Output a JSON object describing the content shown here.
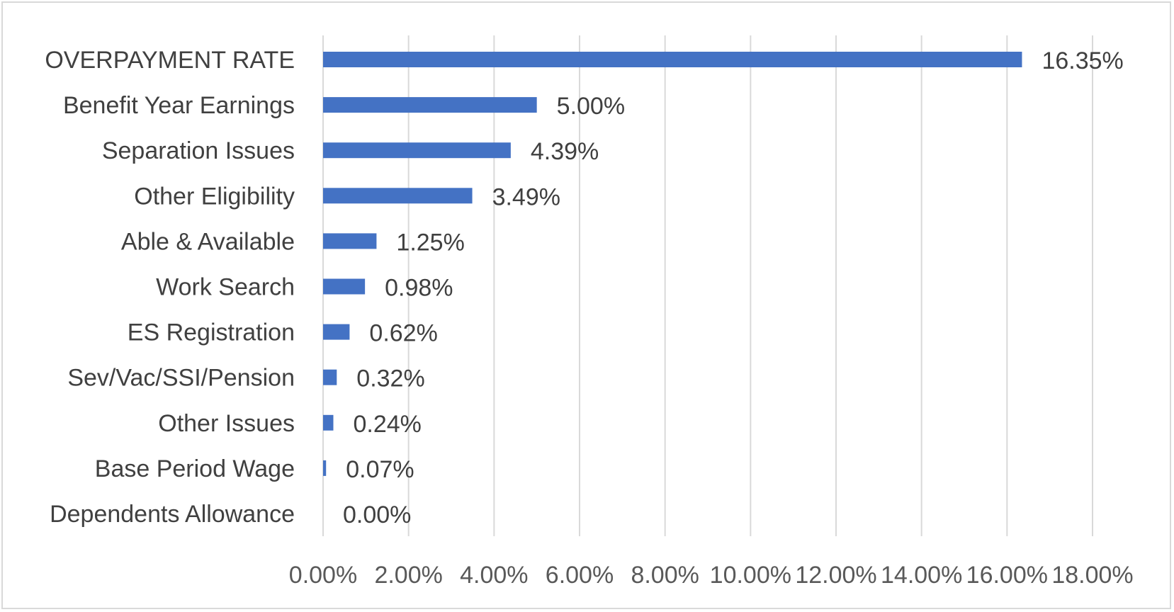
{
  "chart_data": {
    "type": "bar",
    "orientation": "horizontal",
    "title": "",
    "xlabel": "",
    "ylabel": "",
    "xlim": [
      0,
      18
    ],
    "x_tick_values": [
      0,
      2,
      4,
      6,
      8,
      10,
      12,
      14,
      16,
      18
    ],
    "x_tick_labels": [
      "0.00%",
      "2.00%",
      "4.00%",
      "6.00%",
      "8.00%",
      "10.00%",
      "12.00%",
      "14.00%",
      "16.00%",
      "18.00%"
    ],
    "categories": [
      "OVERPAYMENT RATE",
      "Benefit Year Earnings",
      "Separation Issues",
      "Other Eligibility",
      "Able & Available",
      "Work Search",
      "ES Registration",
      "Sev/Vac/SSI/Pension",
      "Other Issues",
      "Base Period Wage",
      "Dependents Allowance"
    ],
    "values": [
      16.35,
      5.0,
      4.39,
      3.49,
      1.25,
      0.98,
      0.62,
      0.32,
      0.24,
      0.07,
      0.0
    ],
    "data_labels": [
      "16.35%",
      "5.00%",
      "4.39%",
      "3.49%",
      "1.25%",
      "0.98%",
      "0.62%",
      "0.32%",
      "0.24%",
      "0.07%",
      "0.00%"
    ],
    "grid": true,
    "legend": "none",
    "colors": {
      "bar": "#4472c4",
      "gridline": "#d9d9d9",
      "text": "#404040",
      "tick_text": "#595959",
      "border": "#d9d9d9"
    }
  }
}
